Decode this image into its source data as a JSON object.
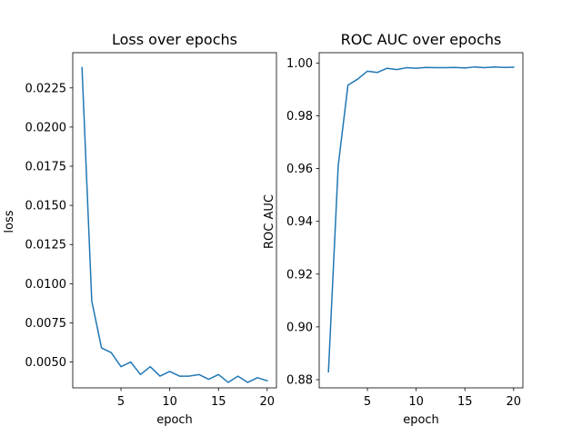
{
  "figure": {
    "background": "#ffffff",
    "line_color": "#1f77b4"
  },
  "chart_data": [
    {
      "type": "line",
      "title": "Loss over epochs",
      "xlabel": "epoch",
      "ylabel": "loss",
      "xlim": [
        0.05,
        20.95
      ],
      "ylim": [
        0.00335,
        0.02475
      ],
      "xticks": [
        5,
        10,
        15,
        20
      ],
      "xtick_labels": [
        "5",
        "10",
        "15",
        "20"
      ],
      "yticks": [
        0.005,
        0.0075,
        0.01,
        0.0125,
        0.015,
        0.0175,
        0.02,
        0.0225
      ],
      "ytick_labels": [
        "0.0050",
        "0.0075",
        "0.0100",
        "0.0125",
        "0.0150",
        "0.0175",
        "0.0200",
        "0.0225"
      ],
      "grid": false,
      "series": [
        {
          "x": [
            1,
            2,
            3,
            4,
            5,
            6,
            7,
            8,
            9,
            10,
            11,
            12,
            13,
            14,
            15,
            16,
            17,
            18,
            19,
            20
          ],
          "values": [
            0.0238,
            0.0089,
            0.0059,
            0.0056,
            0.0047,
            0.005,
            0.0042,
            0.0047,
            0.0041,
            0.0044,
            0.0041,
            0.0041,
            0.0042,
            0.0039,
            0.0042,
            0.0037,
            0.0041,
            0.0037,
            0.004,
            0.0038
          ]
        }
      ]
    },
    {
      "type": "line",
      "title": "ROC AUC over epochs",
      "xlabel": "epoch",
      "ylabel": "ROC AUC",
      "xlim": [
        0.05,
        20.95
      ],
      "ylim": [
        0.8769,
        1.0039
      ],
      "xticks": [
        5,
        10,
        15,
        20
      ],
      "xtick_labels": [
        "5",
        "10",
        "15",
        "20"
      ],
      "yticks": [
        0.88,
        0.9,
        0.92,
        0.94,
        0.96,
        0.98,
        1.0
      ],
      "ytick_labels": [
        "0.88",
        "0.90",
        "0.92",
        "0.94",
        "0.96",
        "0.98",
        "1.00"
      ],
      "grid": false,
      "series": [
        {
          "x": [
            1,
            2,
            3,
            4,
            5,
            6,
            7,
            8,
            9,
            10,
            11,
            12,
            13,
            14,
            15,
            16,
            17,
            18,
            19,
            20
          ],
          "values": [
            0.883,
            0.961,
            0.9916,
            0.9939,
            0.9969,
            0.9964,
            0.998,
            0.9975,
            0.9982,
            0.998,
            0.9983,
            0.9982,
            0.9982,
            0.9983,
            0.9981,
            0.9985,
            0.9982,
            0.9985,
            0.9983,
            0.9984
          ]
        }
      ]
    }
  ]
}
